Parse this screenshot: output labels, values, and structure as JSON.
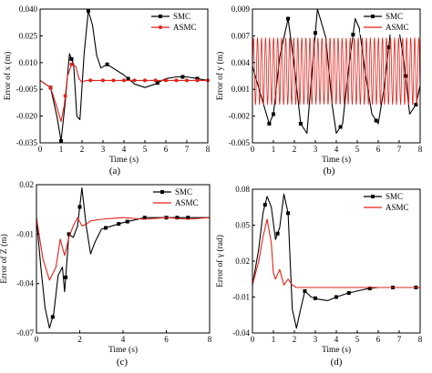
{
  "chart_data": [
    {
      "type": "line",
      "caption": "(a)",
      "xlabel": "Time (s)",
      "ylabel": "Error of x (m)",
      "xlim": [
        0,
        8
      ],
      "ylim": [
        -0.035,
        0.04
      ],
      "xticks": [
        "0",
        "1",
        "2",
        "3",
        "4",
        "5",
        "6",
        "7",
        "8"
      ],
      "yticks": [
        "-0.035",
        "-0.020",
        "-0.005",
        "0.010",
        "0.025",
        "0.040"
      ],
      "legend": "top-right",
      "series": [
        {
          "name": "SMC",
          "color": "#000000",
          "marker": "square",
          "x": [
            0,
            0.5,
            0.8,
            1.0,
            1.2,
            1.4,
            1.6,
            1.75,
            1.9,
            2.1,
            2.3,
            2.5,
            2.7,
            2.9,
            3.2,
            3.6,
            4.0,
            4.5,
            5.0,
            5.5,
            6.0,
            6.5,
            7.0,
            7.5,
            8.0
          ],
          "y": [
            0.0,
            -0.004,
            -0.02,
            -0.034,
            -0.012,
            0.015,
            0.009,
            -0.02,
            -0.022,
            0.015,
            0.039,
            0.031,
            0.014,
            0.007,
            0.009,
            0.006,
            0.003,
            -0.002,
            -0.004,
            -0.002,
            0.001,
            0.002,
            0.002,
            0.001,
            0.0
          ],
          "markers_x": [
            0.5,
            1.0,
            1.5,
            2.3,
            3.2,
            4.2,
            5.6,
            6.8,
            7.5
          ]
        },
        {
          "name": "ASMC",
          "color": "#e32119",
          "marker": "circle",
          "x": [
            0,
            0.5,
            0.8,
            1.0,
            1.15,
            1.3,
            1.5,
            1.7,
            1.85,
            2.0,
            2.2,
            2.5,
            3.0,
            4.0,
            5.0,
            6.0,
            7.0,
            8.0
          ],
          "y": [
            0.0,
            -0.004,
            -0.015,
            -0.023,
            -0.014,
            0.002,
            0.009,
            0.008,
            0.001,
            -0.001,
            0.0,
            0.0,
            0.0,
            0.0,
            0.0,
            0.0,
            0.0,
            0.0
          ],
          "markers_x": [
            0.5,
            1.2,
            1.5,
            2.4,
            3.0,
            3.5,
            4.0,
            4.5,
            5.0,
            5.5,
            6.0,
            6.5,
            7.0,
            7.5,
            8.0
          ]
        }
      ]
    },
    {
      "type": "line",
      "caption": "(b)",
      "xlabel": "Time (s)",
      "ylabel": "Error of y (m)",
      "xlim": [
        0,
        8
      ],
      "ylim": [
        -0.005,
        0.009
      ],
      "xticks": [
        "0",
        "1",
        "2",
        "3",
        "4",
        "5",
        "6",
        "7",
        "8"
      ],
      "yticks": [
        "-0.005",
        "-0.002",
        "0.001",
        "0.004",
        "0.007",
        "0.009"
      ],
      "legend": "top-right",
      "series": [
        {
          "name": "SMC",
          "color": "#000000",
          "marker": "square",
          "x": [
            0.0,
            0.4,
            0.8,
            1.0,
            1.3,
            1.7,
            2.0,
            2.3,
            2.6,
            2.9,
            3.1,
            3.5,
            3.8,
            4.0,
            4.3,
            4.6,
            4.9,
            5.1,
            5.4,
            5.7,
            6.0,
            6.3,
            6.6,
            6.9,
            7.2,
            7.5,
            7.8,
            8.0
          ],
          "y": [
            0.003,
            0.0,
            -0.003,
            -0.002,
            0.004,
            0.008,
            0.003,
            -0.003,
            -0.004,
            0.004,
            0.009,
            0.006,
            -0.001,
            -0.004,
            -0.003,
            0.003,
            0.008,
            0.007,
            0.002,
            -0.002,
            -0.003,
            0.001,
            0.007,
            0.008,
            0.004,
            -0.002,
            -0.001,
            0.001
          ],
          "markers_x": [
            0.8,
            1.0,
            1.7,
            2.3,
            3.0,
            4.2,
            4.8,
            5.9,
            6.5,
            7.3,
            7.8
          ]
        },
        {
          "name": "ASMC",
          "color": "#e32119",
          "marker": "none",
          "oscillation": {
            "center": 0.0025,
            "amplitude": 0.0035,
            "cycles_per_s": 5.2
          }
        }
      ]
    },
    {
      "type": "line",
      "caption": "(c)",
      "xlabel": "Time (s)",
      "ylabel": "Error of Z (m)",
      "xlim": [
        0,
        8
      ],
      "ylim": [
        -0.07,
        0.02
      ],
      "xticks": [
        "0",
        "2",
        "4",
        "6",
        "8"
      ],
      "yticks": [
        "-0.07",
        "-0.04",
        "-0.01",
        "0.02"
      ],
      "legend": "top-right",
      "series": [
        {
          "name": "SMC",
          "color": "#000000",
          "marker": "square",
          "x": [
            0.0,
            0.2,
            0.4,
            0.6,
            0.8,
            1.0,
            1.2,
            1.3,
            1.5,
            1.7,
            1.9,
            2.1,
            2.3,
            2.5,
            2.7,
            3.0,
            3.5,
            4.0,
            5.0,
            6.0,
            7.0,
            8.0
          ],
          "y": [
            0.0,
            -0.03,
            -0.055,
            -0.067,
            -0.058,
            -0.035,
            -0.03,
            -0.045,
            -0.01,
            -0.012,
            -0.005,
            0.018,
            -0.005,
            -0.022,
            -0.015,
            -0.007,
            -0.005,
            -0.003,
            0.0,
            0.0,
            0.0,
            0.0
          ],
          "markers_x": [
            0.75,
            1.35,
            1.5,
            2.0,
            3.2,
            3.8,
            4.2,
            5.0,
            6.0,
            6.5,
            7.0
          ]
        },
        {
          "name": "ASMC",
          "color": "#e32119",
          "marker": "none",
          "x": [
            0.0,
            0.3,
            0.6,
            0.9,
            1.1,
            1.3,
            1.5,
            1.7,
            1.9,
            2.1,
            2.3,
            2.5,
            3.0,
            4.0,
            5.0,
            6.0,
            7.0,
            8.0
          ],
          "y": [
            0.0,
            -0.025,
            -0.038,
            -0.03,
            -0.013,
            -0.023,
            -0.012,
            -0.005,
            0.0,
            -0.005,
            -0.004,
            -0.002,
            -0.001,
            0.0,
            -0.001,
            0.0,
            -0.001,
            0.0
          ]
        }
      ]
    },
    {
      "type": "line",
      "caption": "(d)",
      "xlabel": "Time (s)",
      "ylabel": "Error of γ (rad)",
      "xlim": [
        0,
        8
      ],
      "ylim": [
        -0.04,
        0.08
      ],
      "xticks": [
        "0",
        "1",
        "2",
        "3",
        "4",
        "5",
        "6",
        "7",
        "8"
      ],
      "yticks": [
        "-0.04",
        "-0.01",
        "0.02",
        "0.05",
        "0.08"
      ],
      "legend": "top-right",
      "series": [
        {
          "name": "SMC",
          "color": "#000000",
          "marker": "square",
          "x": [
            0.0,
            0.3,
            0.5,
            0.7,
            0.9,
            1.1,
            1.3,
            1.5,
            1.7,
            1.9,
            2.1,
            2.3,
            2.5,
            2.8,
            3.2,
            3.6,
            4.0,
            4.5,
            5.0,
            5.5,
            6.0,
            7.0,
            8.0
          ],
          "y": [
            0.0,
            0.03,
            0.06,
            0.074,
            0.065,
            0.038,
            0.048,
            0.076,
            0.06,
            -0.02,
            -0.036,
            -0.02,
            -0.005,
            -0.01,
            -0.012,
            -0.013,
            -0.01,
            -0.007,
            -0.005,
            -0.003,
            -0.002,
            -0.002,
            -0.002
          ],
          "markers_x": [
            0.6,
            1.2,
            1.7,
            2.5,
            3.0,
            4.0,
            4.6,
            5.6,
            6.7,
            7.8
          ]
        },
        {
          "name": "ASMC",
          "color": "#e32119",
          "marker": "none",
          "x": [
            0.0,
            0.3,
            0.5,
            0.7,
            0.9,
            1.0,
            1.1,
            1.3,
            1.5,
            1.7,
            1.9,
            2.1,
            2.5,
            3.0,
            4.0,
            5.0,
            6.0,
            7.0,
            8.0
          ],
          "y": [
            0.0,
            0.02,
            0.04,
            0.055,
            0.035,
            0.01,
            0.005,
            0.013,
            0.0,
            0.005,
            0.0,
            -0.002,
            -0.002,
            -0.002,
            -0.002,
            -0.002,
            -0.002,
            -0.002,
            -0.002
          ]
        }
      ]
    }
  ]
}
